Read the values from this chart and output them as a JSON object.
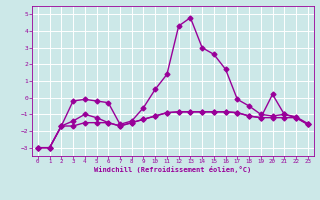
{
  "xlabel": "Windchill (Refroidissement éolien,°C)",
  "ylabel": "",
  "background_color": "#cce8e8",
  "line_color": "#990099",
  "grid_color": "#ffffff",
  "xlim": [
    -0.5,
    23.5
  ],
  "ylim": [
    -3.5,
    5.5
  ],
  "xticks": [
    0,
    1,
    2,
    3,
    4,
    5,
    6,
    7,
    8,
    9,
    10,
    11,
    12,
    13,
    14,
    15,
    16,
    17,
    18,
    19,
    20,
    21,
    22,
    23
  ],
  "yticks": [
    -3,
    -2,
    -1,
    0,
    1,
    2,
    3,
    4,
    5
  ],
  "line1_x": [
    0,
    1,
    2,
    3,
    4,
    5,
    6,
    7,
    8,
    9,
    10,
    11,
    12,
    13,
    14,
    15,
    16,
    17,
    18,
    19,
    20,
    21,
    22,
    23
  ],
  "line1_y": [
    -3.0,
    -3.0,
    -1.7,
    -1.7,
    -1.5,
    -1.5,
    -1.5,
    -1.7,
    -1.5,
    -1.3,
    -1.1,
    -0.9,
    -0.85,
    -0.85,
    -0.85,
    -0.85,
    -0.85,
    -0.9,
    -1.1,
    -1.2,
    -1.2,
    -1.2,
    -1.2,
    -1.6
  ],
  "line2_x": [
    0,
    1,
    2,
    3,
    4,
    5,
    6,
    7,
    8,
    9,
    10,
    11,
    12,
    13,
    14,
    15,
    16,
    17,
    18,
    19,
    20,
    21,
    22,
    23
  ],
  "line2_y": [
    -3.0,
    -3.0,
    -1.7,
    -0.2,
    -0.1,
    -0.2,
    -0.3,
    -1.6,
    -1.4,
    -0.6,
    0.5,
    1.4,
    4.3,
    4.8,
    3.0,
    2.6,
    1.7,
    -0.1,
    -0.5,
    -1.0,
    -1.1,
    -1.0,
    -1.15,
    -1.55
  ],
  "line3_x": [
    0,
    1,
    2,
    3,
    4,
    5,
    6,
    7,
    8,
    9,
    10,
    11,
    12,
    13,
    14,
    15,
    16,
    17,
    18,
    19,
    20,
    21,
    22,
    23
  ],
  "line3_y": [
    -3.0,
    -3.0,
    -1.7,
    -1.4,
    -1.0,
    -1.2,
    -1.5,
    -1.7,
    -1.5,
    -1.3,
    -1.1,
    -0.9,
    -0.85,
    -0.85,
    -0.85,
    -0.85,
    -0.85,
    -0.9,
    -1.1,
    -1.2,
    0.2,
    -1.0,
    -1.2,
    -1.6
  ],
  "marker": "D",
  "markersize": 2.5,
  "linewidth": 1.0
}
